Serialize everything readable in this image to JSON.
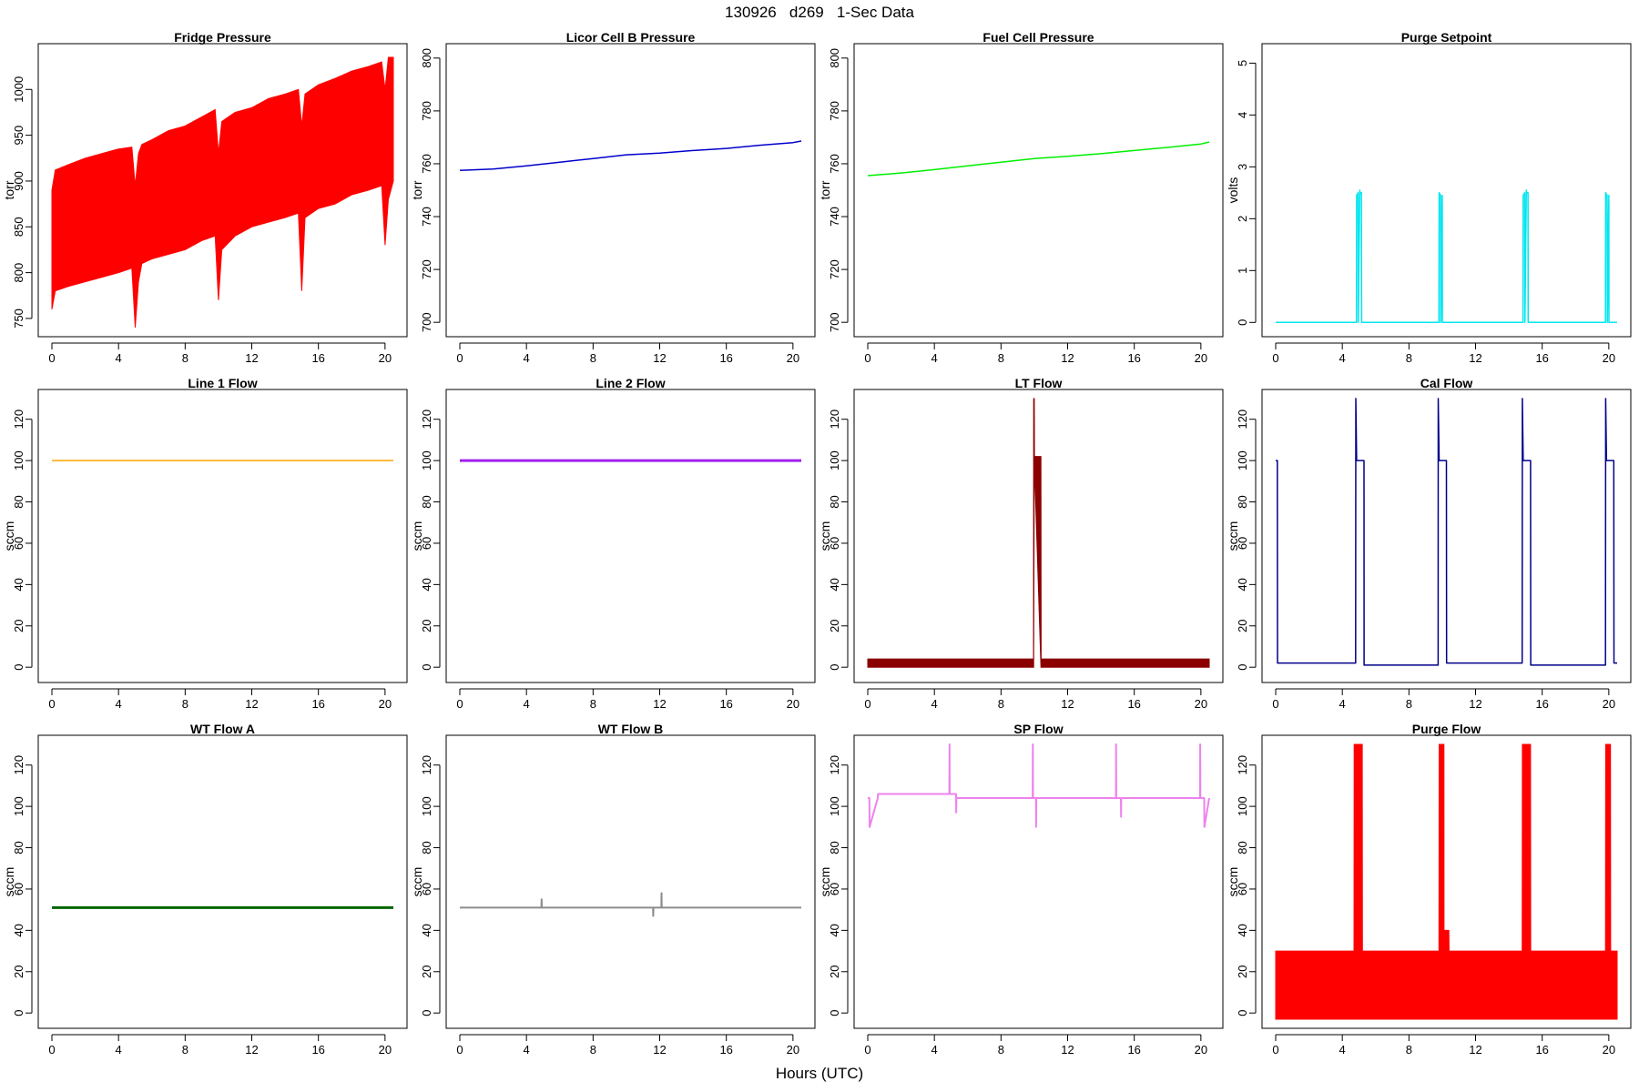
{
  "page": {
    "title": "130926   d269   1-Sec Data",
    "xlabel": "Hours (UTC)"
  },
  "chart_data": [
    {
      "type": "line",
      "title": "Fridge Pressure",
      "ylabel": "torr",
      "color": "#ff0000",
      "xlim": [
        0,
        20.5
      ],
      "ylim": [
        740,
        1040
      ],
      "yticks": [
        750,
        800,
        850,
        900,
        950,
        1000
      ],
      "xticks": [
        0,
        4,
        8,
        12,
        16,
        20
      ],
      "style": "band",
      "x": [
        0,
        0.2,
        1,
        2,
        3,
        4,
        4.8,
        5,
        5.2,
        5.4,
        6,
        7,
        8,
        9,
        9.8,
        10,
        10.2,
        11,
        12,
        13,
        14,
        14.8,
        15,
        15.2,
        16,
        17,
        18,
        19,
        19.8,
        20,
        20.2,
        20.5
      ],
      "upper": [
        890,
        912,
        918,
        925,
        930,
        935,
        937,
        895,
        930,
        940,
        945,
        955,
        960,
        970,
        978,
        930,
        965,
        975,
        980,
        990,
        995,
        1000,
        960,
        995,
        1005,
        1012,
        1020,
        1025,
        1030,
        1000,
        1035,
        1035
      ],
      "lower": [
        760,
        780,
        785,
        790,
        795,
        800,
        805,
        740,
        790,
        810,
        815,
        820,
        825,
        835,
        840,
        770,
        825,
        840,
        850,
        855,
        860,
        865,
        780,
        860,
        870,
        875,
        885,
        890,
        895,
        830,
        880,
        900
      ]
    },
    {
      "type": "line",
      "title": "Licor Cell B Pressure",
      "ylabel": "torr",
      "color": "#0000cd",
      "xlim": [
        0,
        20.5
      ],
      "ylim": [
        698,
        802
      ],
      "yticks": [
        700,
        720,
        740,
        760,
        780,
        800
      ],
      "xticks": [
        0,
        4,
        8,
        12,
        16,
        20
      ],
      "x": [
        0,
        2,
        4,
        6,
        8,
        10,
        12,
        14,
        16,
        18,
        20,
        20.5
      ],
      "y": [
        757.5,
        758,
        759.2,
        760.6,
        762,
        763.4,
        764,
        765,
        765.8,
        767,
        768,
        768.6
      ]
    },
    {
      "type": "line",
      "title": "Fuel Cell Pressure",
      "ylabel": "torr",
      "color": "#00ee00",
      "xlim": [
        0,
        20.5
      ],
      "ylim": [
        698,
        802
      ],
      "yticks": [
        700,
        720,
        740,
        760,
        780,
        800
      ],
      "xticks": [
        0,
        4,
        8,
        12,
        16,
        20
      ],
      "x": [
        0,
        2,
        4,
        6,
        8,
        10,
        12,
        14,
        16,
        18,
        20,
        20.5
      ],
      "y": [
        755.5,
        756.5,
        757.8,
        759.2,
        760.6,
        762,
        762.8,
        763.8,
        765,
        766.2,
        767.5,
        768.2
      ]
    },
    {
      "type": "line",
      "title": "Purge Setpoint",
      "ylabel": "volts",
      "color": "#00e5ee",
      "xlim": [
        0,
        20.5
      ],
      "ylim": [
        -0.1,
        5.2
      ],
      "yticks": [
        0,
        1,
        2,
        3,
        4,
        5
      ],
      "xticks": [
        0,
        4,
        8,
        12,
        16,
        20
      ],
      "x": [
        0,
        4.85,
        4.86,
        4.95,
        4.96,
        5.05,
        5.06,
        5.15,
        5.16,
        9.8,
        9.81,
        9.9,
        9.91,
        10.0,
        10.01,
        14.85,
        14.86,
        14.95,
        14.96,
        15.05,
        15.06,
        15.15,
        15.16,
        19.8,
        19.81,
        19.9,
        19.91,
        20.0,
        20.01,
        20.5
      ],
      "y": [
        0,
        0,
        2.45,
        2.5,
        0,
        2.55,
        2.5,
        2.5,
        0,
        0,
        2.5,
        2.45,
        0,
        2.45,
        0,
        0,
        2.45,
        2.5,
        0,
        2.55,
        2.5,
        2.5,
        0,
        0,
        2.5,
        2.45,
        0,
        2.45,
        0,
        0
      ]
    },
    {
      "type": "line",
      "title": "Line 1 Flow",
      "ylabel": "sccm",
      "color": "#ffa500",
      "xlim": [
        0,
        20.5
      ],
      "ylim": [
        -3,
        130
      ],
      "yticks": [
        0,
        20,
        40,
        60,
        80,
        100,
        120
      ],
      "xticks": [
        0,
        4,
        8,
        12,
        16,
        20
      ],
      "x": [
        0,
        20.5
      ],
      "y": [
        100,
        100
      ]
    },
    {
      "type": "line",
      "title": "Line 2 Flow",
      "ylabel": "sccm",
      "color": "#a020f0",
      "xlim": [
        0,
        20.5
      ],
      "ylim": [
        -3,
        130
      ],
      "yticks": [
        0,
        20,
        40,
        60,
        80,
        100,
        120
      ],
      "xticks": [
        0,
        4,
        8,
        12,
        16,
        20
      ],
      "x": [
        0,
        20.5
      ],
      "y": [
        100,
        100
      ]
    },
    {
      "type": "line",
      "title": "LT Flow",
      "ylabel": "sccm",
      "color": "#8b0000",
      "xlim": [
        0,
        20.5
      ],
      "ylim": [
        -3,
        130
      ],
      "yticks": [
        0,
        20,
        40,
        60,
        80,
        100,
        120
      ],
      "xticks": [
        0,
        4,
        8,
        12,
        16,
        20
      ],
      "style": "band",
      "x": [
        0,
        9.95,
        9.96,
        10.0,
        10.01,
        10.4,
        10.41,
        20.5
      ],
      "upper": [
        4,
        4,
        130,
        130,
        102,
        102,
        4,
        4
      ],
      "lower": [
        0,
        0,
        0,
        98,
        98,
        0,
        0,
        0
      ]
    },
    {
      "type": "line",
      "title": "Cal Flow",
      "ylabel": "sccm",
      "color": "#00008b",
      "xlim": [
        0,
        20.5
      ],
      "ylim": [
        -3,
        130
      ],
      "yticks": [
        0,
        20,
        40,
        60,
        80,
        100,
        120
      ],
      "xticks": [
        0,
        4,
        8,
        12,
        16,
        20
      ],
      "x": [
        0,
        0.1,
        0.11,
        4.8,
        4.81,
        4.86,
        4.87,
        5.3,
        5.31,
        9.75,
        9.76,
        9.81,
        9.82,
        10.25,
        10.26,
        14.8,
        14.81,
        14.86,
        14.87,
        15.3,
        15.31,
        19.8,
        19.81,
        19.86,
        19.87,
        20.3,
        20.31,
        20.5
      ],
      "y": [
        100,
        100,
        2,
        2,
        130,
        100,
        100,
        100,
        1,
        1,
        130,
        100,
        100,
        100,
        2,
        2,
        130,
        100,
        100,
        100,
        1,
        1,
        130,
        100,
        100,
        100,
        2,
        2
      ]
    },
    {
      "type": "line",
      "title": "WT Flow A",
      "ylabel": "sccm",
      "color": "#006400",
      "xlim": [
        0,
        20.5
      ],
      "ylim": [
        -3,
        130
      ],
      "yticks": [
        0,
        20,
        40,
        60,
        80,
        100,
        120
      ],
      "xticks": [
        0,
        4,
        8,
        12,
        16,
        20
      ],
      "x": [
        0,
        20.5
      ],
      "y": [
        51,
        51
      ]
    },
    {
      "type": "line",
      "title": "WT Flow B",
      "ylabel": "sccm",
      "color": "#8c8c8c",
      "xlim": [
        0,
        20.5
      ],
      "ylim": [
        -3,
        130
      ],
      "yticks": [
        0,
        20,
        40,
        60,
        80,
        100,
        120
      ],
      "xticks": [
        0,
        4,
        8,
        12,
        16,
        20
      ],
      "x": [
        0,
        4.9,
        4.91,
        4.92,
        10,
        11.6,
        11.61,
        11.62,
        12.1,
        12.11,
        12.12,
        20.5
      ],
      "y": [
        51,
        51,
        55,
        51,
        51,
        51,
        47,
        51,
        51,
        58,
        51,
        51
      ]
    },
    {
      "type": "line",
      "title": "SP Flow",
      "ylabel": "sccm",
      "color": "#ee82ee",
      "xlim": [
        0,
        20.5
      ],
      "ylim": [
        -3,
        130
      ],
      "yticks": [
        0,
        20,
        40,
        60,
        80,
        100,
        120
      ],
      "xticks": [
        0,
        4,
        8,
        12,
        16,
        20
      ],
      "x": [
        0,
        0.1,
        0.11,
        0.6,
        0.61,
        4.9,
        4.91,
        4.92,
        5.3,
        5.31,
        5.32,
        9.9,
        9.91,
        9.92,
        10.1,
        10.11,
        10.12,
        14.9,
        14.91,
        14.92,
        15.2,
        15.21,
        15.22,
        19.95,
        19.96,
        19.97,
        20.2,
        20.21,
        20.5
      ],
      "y": [
        104,
        104,
        90,
        104,
        106,
        106,
        130,
        106,
        106,
        97,
        104,
        104,
        130,
        104,
        104,
        90,
        104,
        104,
        130,
        104,
        104,
        95,
        104,
        104,
        130,
        104,
        104,
        90,
        104
      ]
    },
    {
      "type": "line",
      "title": "Purge Flow",
      "ylabel": "sccm",
      "color": "#ff0000",
      "xlim": [
        0,
        20.5
      ],
      "ylim": [
        -3,
        130
      ],
      "yticks": [
        0,
        20,
        40,
        60,
        80,
        100,
        120
      ],
      "xticks": [
        0,
        4,
        8,
        12,
        16,
        20
      ],
      "style": "band",
      "x": [
        0,
        4.7,
        4.71,
        5.2,
        5.21,
        9.8,
        9.81,
        10.1,
        10.11,
        10.4,
        10.41,
        14.8,
        14.81,
        15.3,
        15.31,
        19.8,
        19.81,
        20.1,
        20.11,
        20.5
      ],
      "upper": [
        30,
        30,
        130,
        130,
        30,
        30,
        130,
        130,
        40,
        40,
        30,
        30,
        130,
        130,
        30,
        30,
        130,
        130,
        30,
        30
      ],
      "lower": [
        -3,
        -3,
        -3,
        -3,
        -3,
        -3,
        -3,
        -3,
        -3,
        -3,
        -3,
        -3,
        -3,
        -3,
        -3,
        -3,
        -3,
        -3,
        -3,
        -3
      ]
    }
  ]
}
